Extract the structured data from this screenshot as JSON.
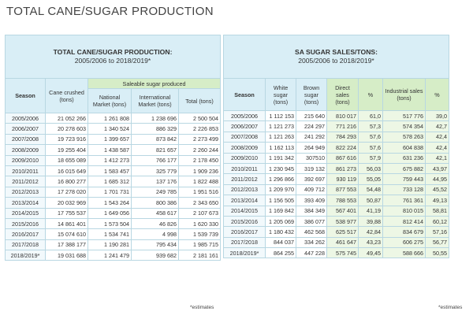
{
  "page_title": "TOTAL CANE/SUGAR PRODUCTION",
  "left_table": {
    "title_line1": "TOTAL CANE/SUGAR PRODUCTION:",
    "title_line2": "2005/2006 to 2018/2019*",
    "group_header": "Saleable sugar produced",
    "headers": [
      "Season",
      "Cane crushed (tons)",
      "National Market (tons)",
      "International Market (tons)",
      "Total (tons)"
    ],
    "rows": [
      [
        "2005/2006",
        "21 052 266",
        "1 261 808",
        "1 238 696",
        "2 500 504"
      ],
      [
        "2006/2007",
        "20 278 603",
        "1 340 524",
        "886 329",
        "2 226 853"
      ],
      [
        "2007/2008",
        "19 723 916",
        "1 399 657",
        "873 842",
        "2 273 499"
      ],
      [
        "2008/2009",
        "19 255 404",
        "1 438 587",
        "821 657",
        "2 260 244"
      ],
      [
        "2009/2010",
        "18 655 089",
        "1 412 273",
        "766 177",
        "2 178 450"
      ],
      [
        "2010/2011",
        "16 015 649",
        "1 583 457",
        "325 779",
        "1 909 236"
      ],
      [
        "2011/2012",
        "16 800 277",
        "1 685 312",
        "137 176",
        "1 822 488"
      ],
      [
        "2012/2013",
        "17 278 020",
        "1 701 731",
        "249 785",
        "1 951 516"
      ],
      [
        "2013/2014",
        "20 032 969",
        "1 543 264",
        "800 386",
        "2 343 650"
      ],
      [
        "2014/2015",
        "17 755 537",
        "1 649 056",
        "458 617",
        "2 107 673"
      ],
      [
        "2015/2016",
        "14 861 401",
        "1 573 504",
        "46 826",
        "1 620 330"
      ],
      [
        "2016/2017",
        "15 074 610",
        "1 534 741",
        "4 998",
        "1 539 739"
      ],
      [
        "2017/2018",
        "17 388 177",
        "1 190 281",
        "795 434",
        "1 985 715"
      ],
      [
        "2018/2019*",
        "19 031 688",
        "1 241 479",
        "939 682",
        "2 181 161"
      ]
    ],
    "footnote": "*estimates"
  },
  "right_table": {
    "title_line1": "SA SUGAR SALES/TONS:",
    "title_line2": "2005/2006 to 2018/2019*",
    "headers": [
      "Season",
      "White sugar (tons)",
      "Brown sugar (tons)",
      "Direct sales (tons)",
      "%",
      "Industrial sales (tons)",
      "%"
    ],
    "rows": [
      [
        "2005/2006",
        "1 112 153",
        "215 640",
        "810 017",
        "61,0",
        "517 776",
        "39,0"
      ],
      [
        "2006/2007",
        "1 121 273",
        "224 297",
        "771 216",
        "57,3",
        "574 354",
        "42,7"
      ],
      [
        "2007/2008",
        "1 121 263",
        "241 292",
        "784 293",
        "57,6",
        "578 263",
        "42,4"
      ],
      [
        "2008/2009",
        "1 162 113",
        "264 949",
        "822 224",
        "57,6",
        "604 838",
        "42,4"
      ],
      [
        "2009/2010",
        "1 191 342",
        "307510",
        "867 616",
        "57,9",
        "631 236",
        "42,1"
      ],
      [
        "2010/2011",
        "1 230 945",
        "319 132",
        "861 273",
        "56,03",
        "675 882",
        "43,97"
      ],
      [
        "2011/2012",
        "1 296 866",
        "392 697",
        "930 119",
        "55,05",
        "759 443",
        "44,95"
      ],
      [
        "2012/2013",
        "1 209 970",
        "409 712",
        "877 553",
        "54,48",
        "733 128",
        "45,52"
      ],
      [
        "2013/2014",
        "1 156 505",
        "393 409",
        "788 553",
        "50,87",
        "761 361",
        "49,13"
      ],
      [
        "2014/2015",
        "1 169 842",
        "384 349",
        "567 401",
        "41,19",
        "810 015",
        "58,81"
      ],
      [
        "2015/2016",
        "1 205 069",
        "386 077",
        "538 977",
        "39,88",
        "812 414",
        "60,12"
      ],
      [
        "2016/2017",
        "1 180 432",
        "462 568",
        "625 517",
        "42,84",
        "834 679",
        "57,16"
      ],
      [
        "2017/2018",
        "844 037",
        "334 262",
        "461 647",
        "43,23",
        "606 275",
        "56,77"
      ],
      [
        "2018/2019*",
        "864 255",
        "447 228",
        "575 745",
        "49,45",
        "588 666",
        "50,55"
      ]
    ],
    "footnote": "*estimates"
  }
}
